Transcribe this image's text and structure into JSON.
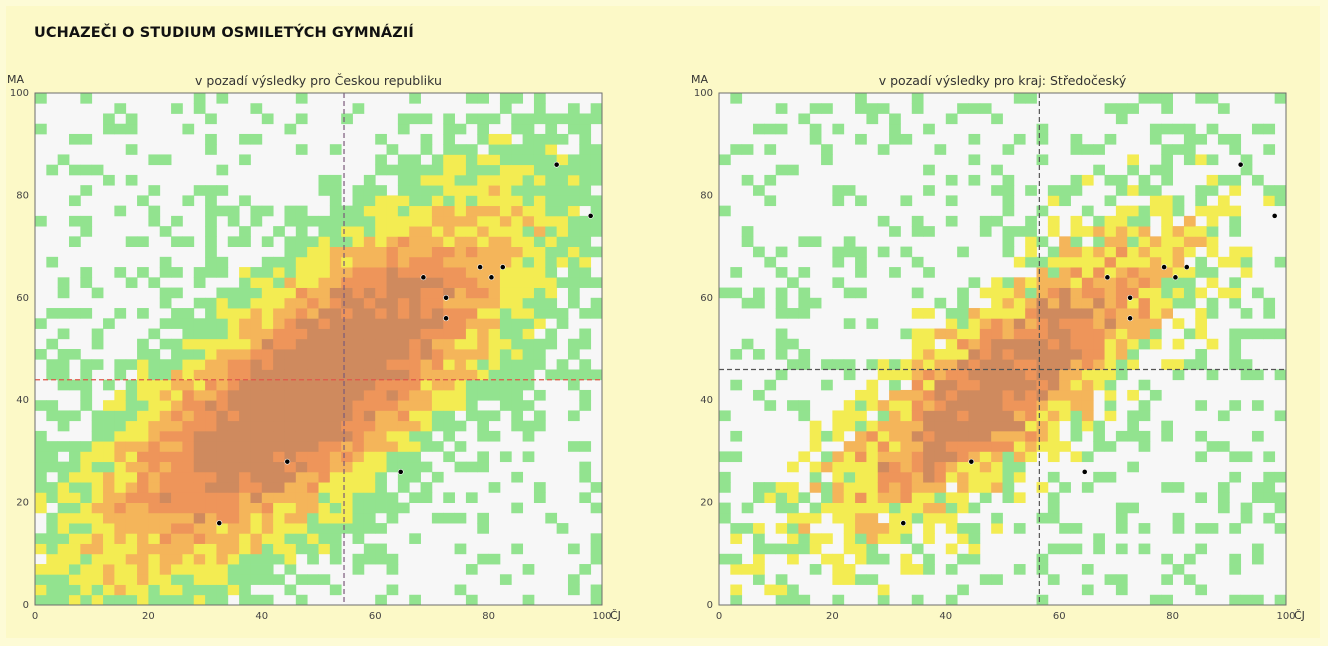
{
  "title": "UCHAZEČI O STUDIUM OSMILETÝCH GYMNÁZIÍ",
  "colors": {
    "background": "#fcf9c7",
    "plot_background": "#f7f7f7",
    "density_levels": [
      "#f7f7f7",
      "#92e38f",
      "#f3ec52",
      "#f4b55a",
      "#ee955a",
      "#cf8a5e"
    ]
  },
  "chart_data": [
    {
      "type": "heatmap",
      "subtitle": "v pozadí výsledky pro Českou republiku",
      "xlabel": "ČJ",
      "ylabel": "MA",
      "xlim": [
        0,
        100
      ],
      "ylim": [
        0,
        100
      ],
      "xticks": [
        "0",
        "20",
        "40",
        "60",
        "80",
        "100"
      ],
      "yticks": [
        "0",
        "20",
        "40",
        "60",
        "80",
        "100"
      ],
      "grid": false,
      "mean_lines": {
        "x": 54.5,
        "y": 44,
        "style": "dashed"
      },
      "highlight_points": [
        {
          "x": 92,
          "y": 86
        },
        {
          "x": 98,
          "y": 76
        },
        {
          "x": 68.5,
          "y": 64
        },
        {
          "x": 78.5,
          "y": 66
        },
        {
          "x": 80.5,
          "y": 64
        },
        {
          "x": 82.5,
          "y": 66
        },
        {
          "x": 72.5,
          "y": 60
        },
        {
          "x": 72.5,
          "y": 56
        },
        {
          "x": 44.5,
          "y": 28
        },
        {
          "x": 64.5,
          "y": 26
        },
        {
          "x": 32.5,
          "y": 16
        }
      ]
    },
    {
      "type": "heatmap",
      "subtitle": "v pozadí výsledky pro kraj: Středočeský",
      "xlabel": "ČJ",
      "ylabel": "MA",
      "xlim": [
        0,
        100
      ],
      "ylim": [
        0,
        100
      ],
      "xticks": [
        "0",
        "20",
        "40",
        "60",
        "80",
        "100"
      ],
      "yticks": [
        "0",
        "20",
        "40",
        "60",
        "80",
        "100"
      ],
      "grid": false,
      "mean_lines": {
        "x": 56.5,
        "y": 46,
        "style": "dashed"
      },
      "highlight_points": [
        {
          "x": 92,
          "y": 86
        },
        {
          "x": 98,
          "y": 76
        },
        {
          "x": 68.5,
          "y": 64
        },
        {
          "x": 78.5,
          "y": 66
        },
        {
          "x": 80.5,
          "y": 64
        },
        {
          "x": 82.5,
          "y": 66
        },
        {
          "x": 72.5,
          "y": 60
        },
        {
          "x": 72.5,
          "y": 56
        },
        {
          "x": 44.5,
          "y": 28
        },
        {
          "x": 64.5,
          "y": 26
        },
        {
          "x": 32.5,
          "y": 16
        }
      ]
    }
  ]
}
